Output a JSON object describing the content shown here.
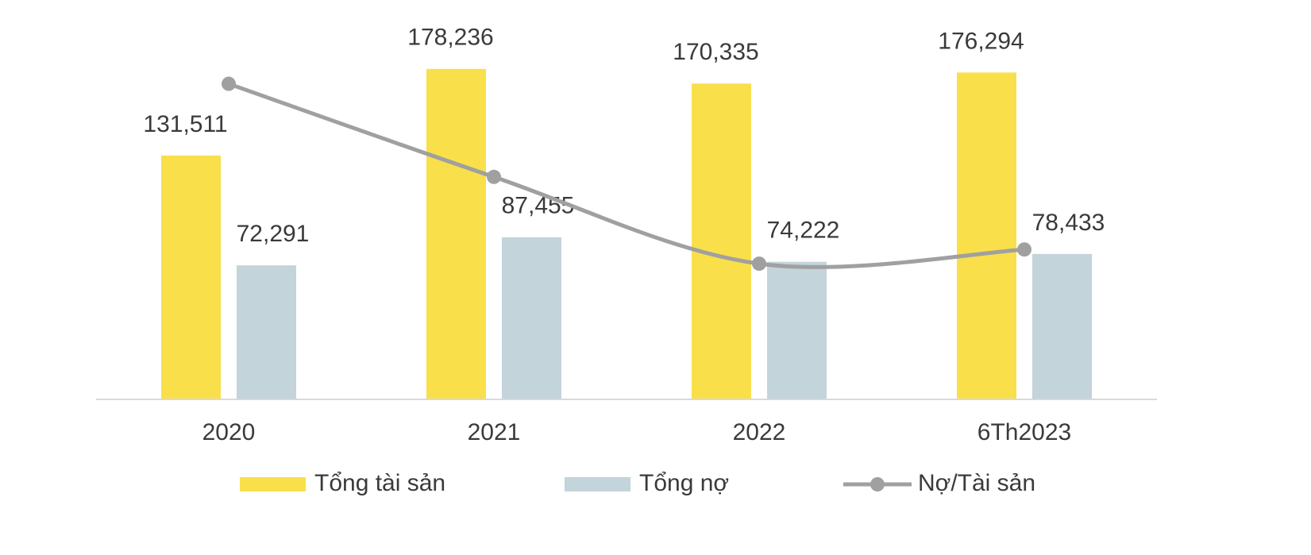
{
  "chart_data": {
    "type": "bar",
    "categories": [
      "2020",
      "2021",
      "2022",
      "6Th2023"
    ],
    "ylim": [
      0,
      200000
    ],
    "y2lim": [
      35,
      58.5
    ],
    "series": [
      {
        "name": "Tổng tài sản",
        "color": "#f9df4a",
        "values": [
          131511,
          178236,
          170335,
          176294
        ],
        "value_labels": [
          "131,511",
          "178,236",
          "170,335",
          "176,294"
        ]
      },
      {
        "name": "Tổng nợ",
        "color": "#c3d4da",
        "values": [
          72291,
          87455,
          74222,
          78433
        ],
        "value_labels": [
          "72,291",
          "87,455",
          "74,222",
          "78,433"
        ]
      },
      {
        "name": "Nợ/Tài sản",
        "type": "line",
        "axis": "y2",
        "color": "#a0a0a0",
        "values": [
          55,
          49.1,
          43.6,
          44.5
        ]
      }
    ]
  }
}
